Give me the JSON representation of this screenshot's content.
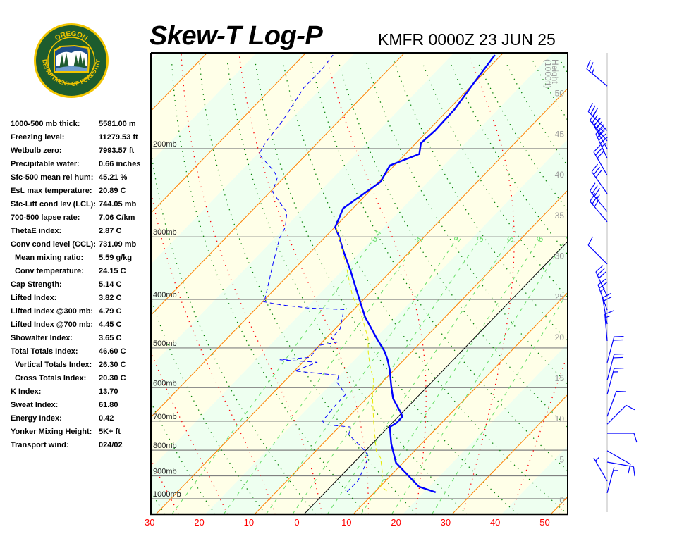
{
  "header": {
    "title": "Skew-T Log-P",
    "station_time": "KMFR 0000Z 23 JUN 25"
  },
  "logo": {
    "top_text": "OREGON",
    "ring_text": "DEPARTMENT OF FORESTRY",
    "colors": {
      "ring": "#f2c500",
      "field": "#1d5c2e",
      "water": "#1f4f8a"
    }
  },
  "stats": [
    {
      "label": "1000-500 mb thick:",
      "value": "5581.00 m"
    },
    {
      "label": "Freezing level:",
      "value": "11279.53 ft"
    },
    {
      "label": "Wetbulb zero:",
      "value": "7993.57 ft"
    },
    {
      "label": "Precipitable water:",
      "value": "0.66 inches"
    },
    {
      "label": "Sfc-500 mean rel hum:",
      "value": "45.21 %"
    },
    {
      "label": "Est. max temperature:",
      "value": "20.89 C"
    },
    {
      "label": "Sfc-Lift cond lev (LCL):",
      "value": "744.05 mb"
    },
    {
      "label": "700-500 lapse rate:",
      "value": "7.06 C/km"
    },
    {
      "label": "ThetaE index:",
      "value": "2.87 C"
    },
    {
      "label": "Conv cond level (CCL):",
      "value": "731.09 mb"
    },
    {
      "label": "Mean mixing ratio:",
      "value": "5.59 g/kg",
      "indent": true
    },
    {
      "label": "Conv temperature:",
      "value": "24.15 C",
      "indent": true
    },
    {
      "label": "Cap Strength:",
      "value": "5.14 C"
    },
    {
      "label": "Lifted Index:",
      "value": "3.82 C"
    },
    {
      "label": "Lifted Index @300 mb:",
      "value": "4.79 C"
    },
    {
      "label": "Lifted Index @700 mb:",
      "value": "4.45 C"
    },
    {
      "label": "Showalter Index:",
      "value": "3.65 C"
    },
    {
      "label": "Total Totals Index:",
      "value": "46.60 C"
    },
    {
      "label": "Vertical Totals Index:",
      "value": "26.30 C",
      "indent": true
    },
    {
      "label": "Cross Totals Index:",
      "value": "20.30 C",
      "indent": true
    },
    {
      "label": "K Index:",
      "value": "13.70"
    },
    {
      "label": "Sweat Index:",
      "value": "61.80"
    },
    {
      "label": "Energy Index:",
      "value": "0.42"
    },
    {
      "label": "Yonker Mixing Height:",
      "value": "5K+ ft"
    },
    {
      "label": "Transport wind:",
      "value": "024/02"
    }
  ],
  "chart_data": {
    "type": "line",
    "diagram": "skew-T log-P",
    "x_scale": "temperature (C), skewed 45 degrees",
    "y_scale": "log pressure (mb)",
    "xlim": [
      -30,
      54
    ],
    "ylim_mb": [
      1074,
      130
    ],
    "x_ticks": [
      "-30",
      "-20",
      "-10",
      "0",
      "10",
      "20",
      "30",
      "40",
      "50"
    ],
    "pressure_levels": [
      {
        "p": 200,
        "label": "200mb"
      },
      {
        "p": 300,
        "label": "300mb"
      },
      {
        "p": 400,
        "label": "400mb"
      },
      {
        "p": 500,
        "label": "500mb"
      },
      {
        "p": 600,
        "label": "600mb"
      },
      {
        "p": 700,
        "label": "700mb"
      },
      {
        "p": 800,
        "label": "800mb"
      },
      {
        "p": 900,
        "label": "900mb"
      },
      {
        "p": 1000,
        "label": "1000mb"
      }
    ],
    "height_axis": {
      "title": "Height",
      "units": "(1000ft)",
      "ticks": [
        "0",
        "5",
        "10",
        "15",
        "20",
        "25",
        "30",
        "35",
        "40",
        "45",
        "50"
      ]
    },
    "mixing_ratio_labels": [
      "0.4",
      "1",
      "2",
      "3",
      "5",
      "8"
    ],
    "mixing_ratio_values": [
      0.4,
      1,
      2,
      3,
      5,
      8,
      12,
      20
    ],
    "colors": {
      "isotherm": "#ff8000",
      "freezing_isotherm": "#000000",
      "dry_adiabat": "#008000",
      "moist_adiabat": "#ff0000",
      "mixing_ratio": "#66dd66",
      "isobar": "#808080",
      "band_a": "#ffffe8",
      "band_b": "#eefff0",
      "x_tick_label": "#ff0000",
      "height_label": "#999999"
    },
    "series": [
      {
        "color": "#0000ff",
        "style": "solid-thick",
        "points": [
          [
            971,
            22.4
          ],
          [
            946,
            17.9
          ],
          [
            848,
            8.6
          ],
          [
            777,
            3.9
          ],
          [
            719,
            0.3
          ],
          [
            705,
            0.9
          ],
          [
            685,
            0.8
          ],
          [
            669,
            -0.7
          ],
          [
            631,
            -4.6
          ],
          [
            596,
            -7.4
          ],
          [
            553,
            -10.9
          ],
          [
            527,
            -13.4
          ],
          [
            507,
            -15.7
          ],
          [
            475,
            -20.2
          ],
          [
            434,
            -26.2
          ],
          [
            406,
            -30.0
          ],
          [
            381,
            -33.6
          ],
          [
            351,
            -38.2
          ],
          [
            319,
            -43.8
          ],
          [
            299,
            -47.4
          ],
          [
            287,
            -49.9
          ],
          [
            263,
            -52.0
          ],
          [
            244,
            -50.5
          ],
          [
            233,
            -49.6
          ],
          [
            220,
            -50.6
          ],
          [
            216,
            -50.9
          ],
          [
            205,
            -47.2
          ],
          [
            195,
            -49.0
          ],
          [
            184,
            -48.6
          ],
          [
            167,
            -48.8
          ],
          [
            149,
            -50.0
          ],
          [
            130,
            -51.3
          ]
        ]
      },
      {
        "color": "#0000ff",
        "style": "dashed-thin",
        "points": [
          [
            968,
            4.3
          ],
          [
            922,
            4.4
          ],
          [
            864,
            3.0
          ],
          [
            823,
            1.7
          ],
          [
            802,
            -0.1
          ],
          [
            777,
            -2.8
          ],
          [
            745,
            -6.5
          ],
          [
            719,
            -7.7
          ],
          [
            712,
            -13.0
          ],
          [
            700,
            -14.5
          ],
          [
            646,
            -15.0
          ],
          [
            619,
            -15.0
          ],
          [
            586,
            -19.1
          ],
          [
            567,
            -20.2
          ],
          [
            556,
            -29.9
          ],
          [
            534,
            -27.1
          ],
          [
            528,
            -35.1
          ],
          [
            522,
            -29.5
          ],
          [
            494,
            -30.0
          ],
          [
            487,
            -27.0
          ],
          [
            478,
            -28.9
          ],
          [
            458,
            -29.0
          ],
          [
            419,
            -32.0
          ],
          [
            416,
            -39.6
          ],
          [
            410,
            -45.8
          ],
          [
            404,
            -50.0
          ],
          [
            400,
            -50.0
          ],
          [
            340,
            -55.3
          ],
          [
            302,
            -59.0
          ],
          [
            287,
            -60.0
          ],
          [
            268,
            -62.6
          ],
          [
            256,
            -66.0
          ],
          [
            244,
            -69.5
          ],
          [
            228,
            -71.4
          ],
          [
            221,
            -73.6
          ],
          [
            205,
            -79.7
          ],
          [
            194,
            -80.6
          ],
          [
            176,
            -81.4
          ],
          [
            151,
            -83.6
          ],
          [
            139,
            -83.5
          ],
          [
            130,
            -84.1
          ]
        ]
      },
      {
        "color": "#e8e800",
        "style": "dashed-thin",
        "points": [
          [
            965,
            12.2
          ],
          [
            943,
            10.1
          ],
          [
            890,
            7.9
          ],
          [
            829,
            4.5
          ],
          [
            802,
            2.2
          ],
          [
            705,
            -3.8
          ],
          [
            619,
            -9.6
          ],
          [
            580,
            -12.1
          ],
          [
            544,
            -15.6
          ],
          [
            510,
            -18.7
          ],
          [
            478,
            -21.5
          ],
          [
            448,
            -25.1
          ],
          [
            420,
            -28.7
          ],
          [
            394,
            -32.9
          ],
          [
            369,
            -36.3
          ],
          [
            346,
            -39.6
          ],
          [
            324,
            -43.1
          ],
          [
            299,
            -47.4
          ],
          [
            287,
            -49.7
          ]
        ]
      }
    ],
    "wind_barbs": [
      {
        "p": 150,
        "dir": 310,
        "kt": 25
      },
      {
        "p": 184,
        "dir": 315,
        "kt": 30
      },
      {
        "p": 193,
        "dir": 320,
        "kt": 35
      },
      {
        "p": 200,
        "dir": 330,
        "kt": 40
      },
      {
        "p": 209,
        "dir": 335,
        "kt": 45
      },
      {
        "p": 226,
        "dir": 330,
        "kt": 30
      },
      {
        "p": 246,
        "dir": 325,
        "kt": 30
      },
      {
        "p": 267,
        "dir": 320,
        "kt": 35
      },
      {
        "p": 280,
        "dir": 320,
        "kt": 30
      },
      {
        "p": 340,
        "dir": 315,
        "kt": 10
      },
      {
        "p": 394,
        "dir": 335,
        "kt": 30
      },
      {
        "p": 420,
        "dir": 340,
        "kt": 25
      },
      {
        "p": 448,
        "dir": 350,
        "kt": 20
      },
      {
        "p": 484,
        "dir": 355,
        "kt": 15
      },
      {
        "p": 535,
        "dir": 15,
        "kt": 20
      },
      {
        "p": 580,
        "dir": 15,
        "kt": 20
      },
      {
        "p": 619,
        "dir": 15,
        "kt": 15
      },
      {
        "p": 685,
        "dir": 20,
        "kt": 10
      },
      {
        "p": 710,
        "dir": 45,
        "kt": 10
      },
      {
        "p": 740,
        "dir": 90,
        "kt": 10
      },
      {
        "p": 802,
        "dir": 120,
        "kt": 10
      },
      {
        "p": 845,
        "dir": 100,
        "kt": 10
      },
      {
        "p": 922,
        "dir": 330,
        "kt": 5
      },
      {
        "p": 974,
        "dir": 15,
        "kt": 5
      }
    ]
  }
}
